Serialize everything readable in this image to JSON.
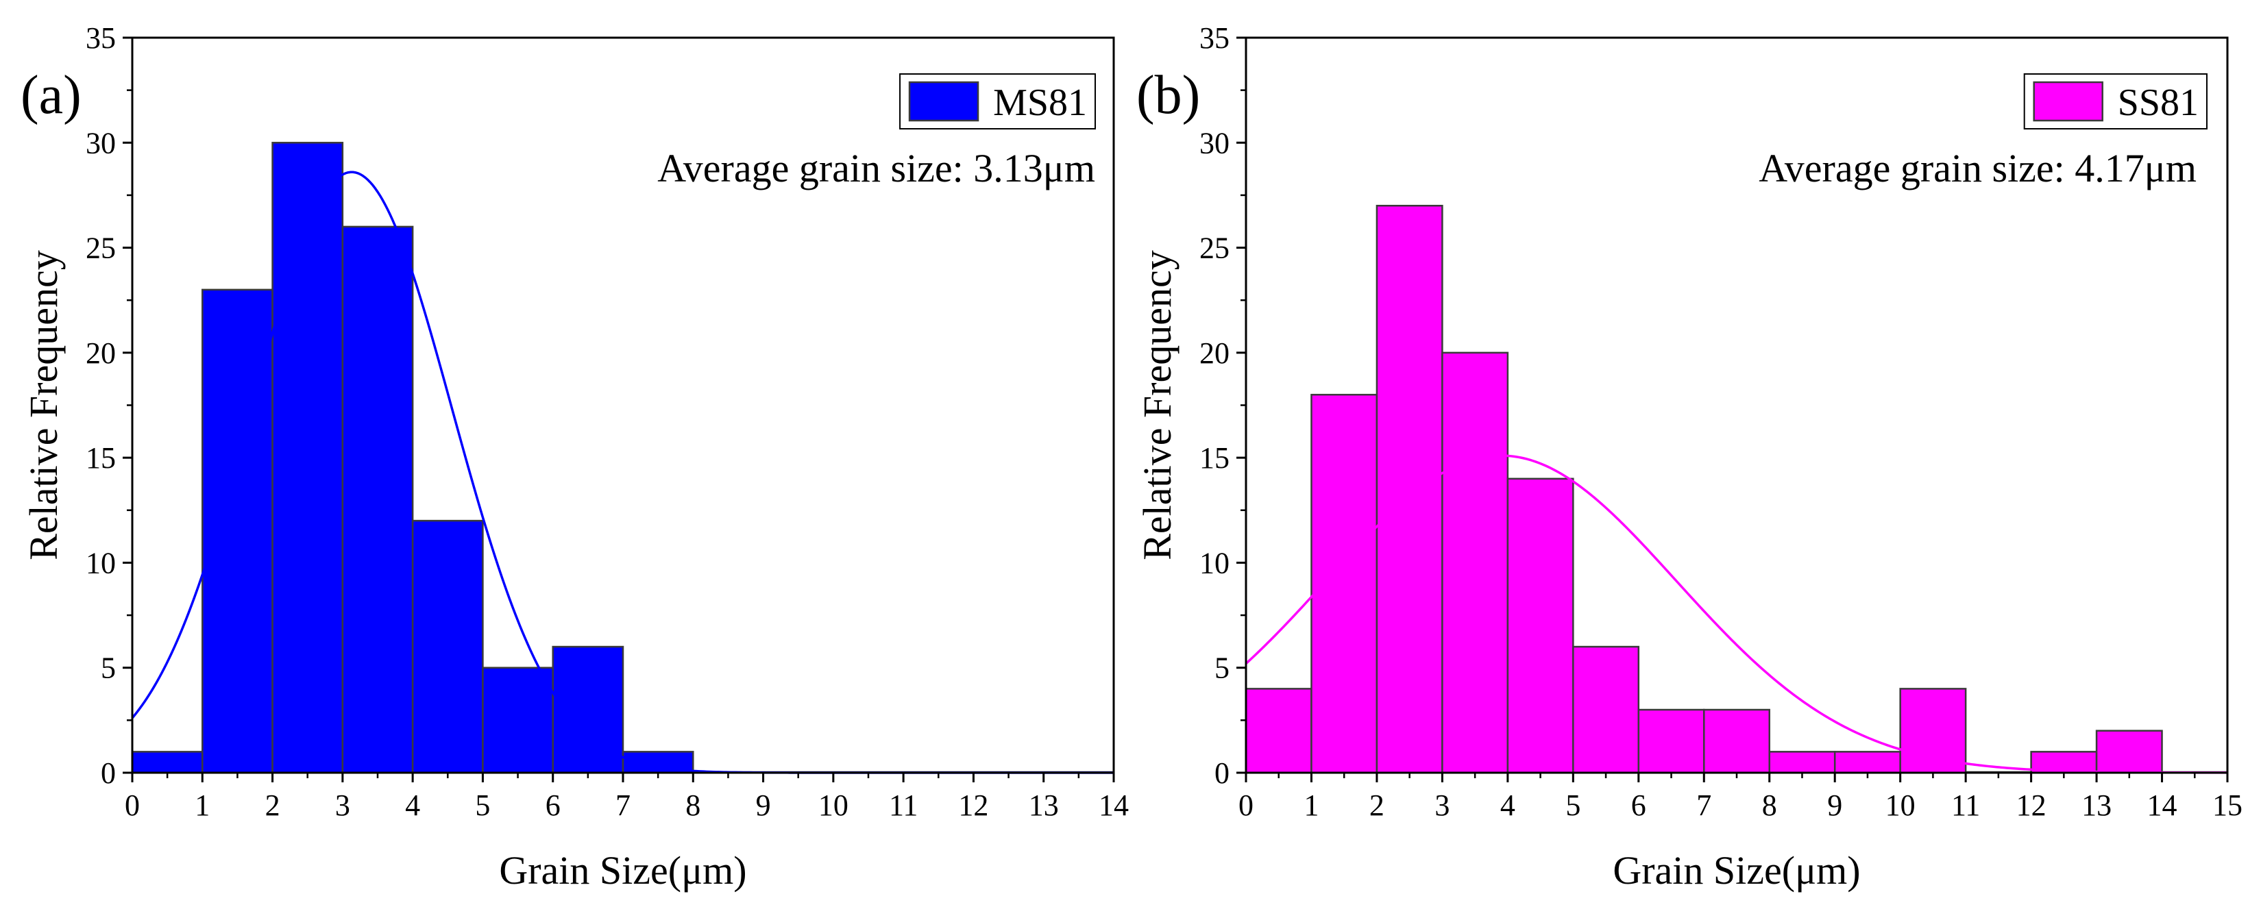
{
  "chart_data": [
    {
      "type": "bar",
      "panel_label": "(a)",
      "xlabel": "Grain Size(μm)",
      "ylabel": "Relative Frequency",
      "xlim": [
        0,
        14
      ],
      "ylim": [
        0,
        35
      ],
      "xticks": [
        0,
        1,
        2,
        3,
        4,
        5,
        6,
        7,
        8,
        9,
        10,
        11,
        12,
        13,
        14
      ],
      "yticks": [
        0,
        5,
        10,
        15,
        20,
        25,
        30,
        35
      ],
      "bin_width": 1,
      "bins": [
        0,
        1,
        2,
        3,
        4,
        5,
        6,
        7,
        8,
        9,
        10,
        11,
        12,
        13
      ],
      "values": [
        1,
        23,
        30,
        26,
        12,
        5,
        6,
        1,
        0,
        0,
        0,
        0,
        0,
        0
      ],
      "legend": "MS81",
      "legend_position": "top-right",
      "annotation": "Average grain size: 3.13μm",
      "color": "#0000ff",
      "fit": {
        "type": "normal",
        "mean": 3.13,
        "peak": 28.6,
        "sigma": 1.43
      }
    },
    {
      "type": "bar",
      "panel_label": "(b)",
      "xlabel": "Grain Size(μm)",
      "ylabel": "Relative Frequency",
      "xlim": [
        0,
        15
      ],
      "ylim": [
        0,
        35
      ],
      "xticks": [
        0,
        1,
        2,
        3,
        4,
        5,
        6,
        7,
        8,
        9,
        10,
        11,
        12,
        13,
        14,
        15
      ],
      "yticks": [
        0,
        5,
        10,
        15,
        20,
        25,
        30,
        35
      ],
      "bin_width": 1,
      "bins": [
        0,
        1,
        2,
        3,
        4,
        5,
        6,
        7,
        8,
        9,
        10,
        11,
        12,
        13,
        14
      ],
      "values": [
        4,
        18,
        27,
        20,
        14,
        6,
        3,
        3,
        1,
        1,
        4,
        0,
        1,
        2,
        0
      ],
      "legend": "SS81",
      "legend_position": "top-right",
      "annotation": "Average grain size: 4.17μm",
      "color": "#ff00ff",
      "fit": {
        "type": "normal",
        "mean": 3.9,
        "peak": 15.1,
        "sigma": 2.67
      }
    }
  ]
}
